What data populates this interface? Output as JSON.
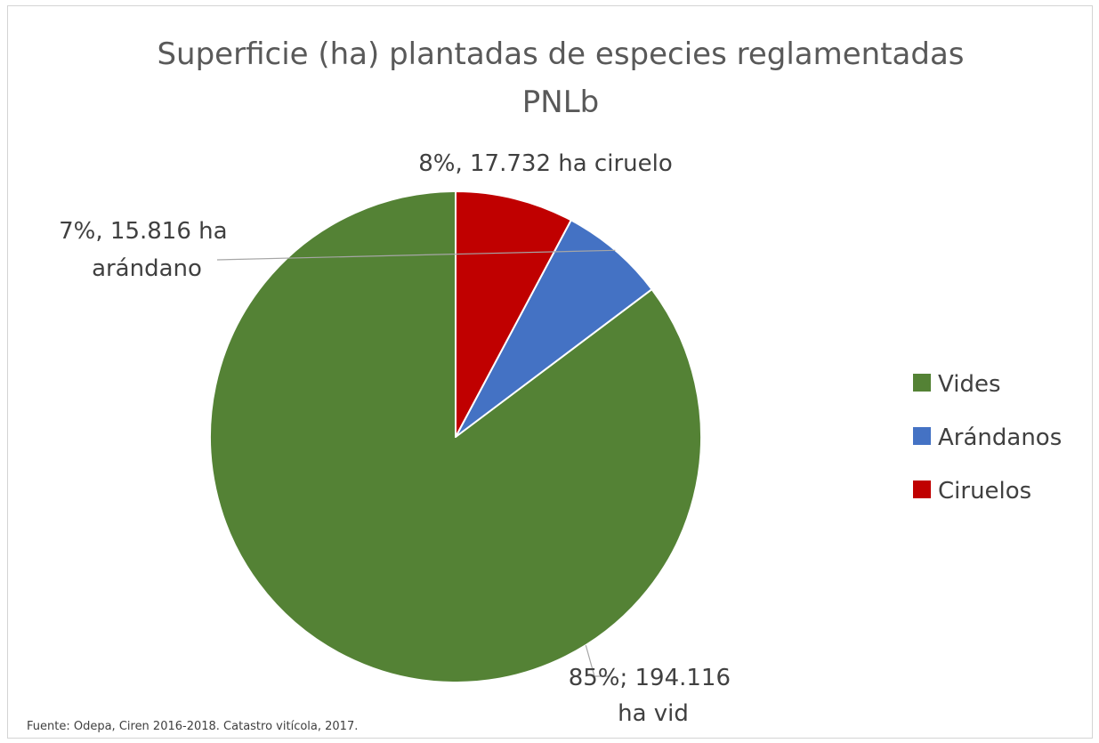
{
  "chart_data": {
    "type": "pie",
    "title": "Superficie (ha) plantadas de especies reglamentadas",
    "subtitle": "PNLb",
    "categories": [
      "Vides",
      "Arándanos",
      "Ciruelos"
    ],
    "values": [
      194116,
      15816,
      17732
    ],
    "percentages": [
      85,
      7,
      8
    ],
    "colors": [
      "#548235",
      "#4472C4",
      "#C00000"
    ],
    "start_angle_deg": 0,
    "direction": "counterclockwise",
    "data_labels": [
      [
        "85%; 194.116",
        "ha vid"
      ],
      [
        "7%, 15.816 ha",
        "arándano"
      ],
      [
        "8%, 17.732 ha ciruelo"
      ]
    ],
    "legend": {
      "position": "right",
      "entries": [
        "Vides",
        "Arándanos",
        "Ciruelos"
      ]
    },
    "source": "Fuente: Odepa, Ciren 2016-2018. Catastro vitícola, 2017."
  }
}
